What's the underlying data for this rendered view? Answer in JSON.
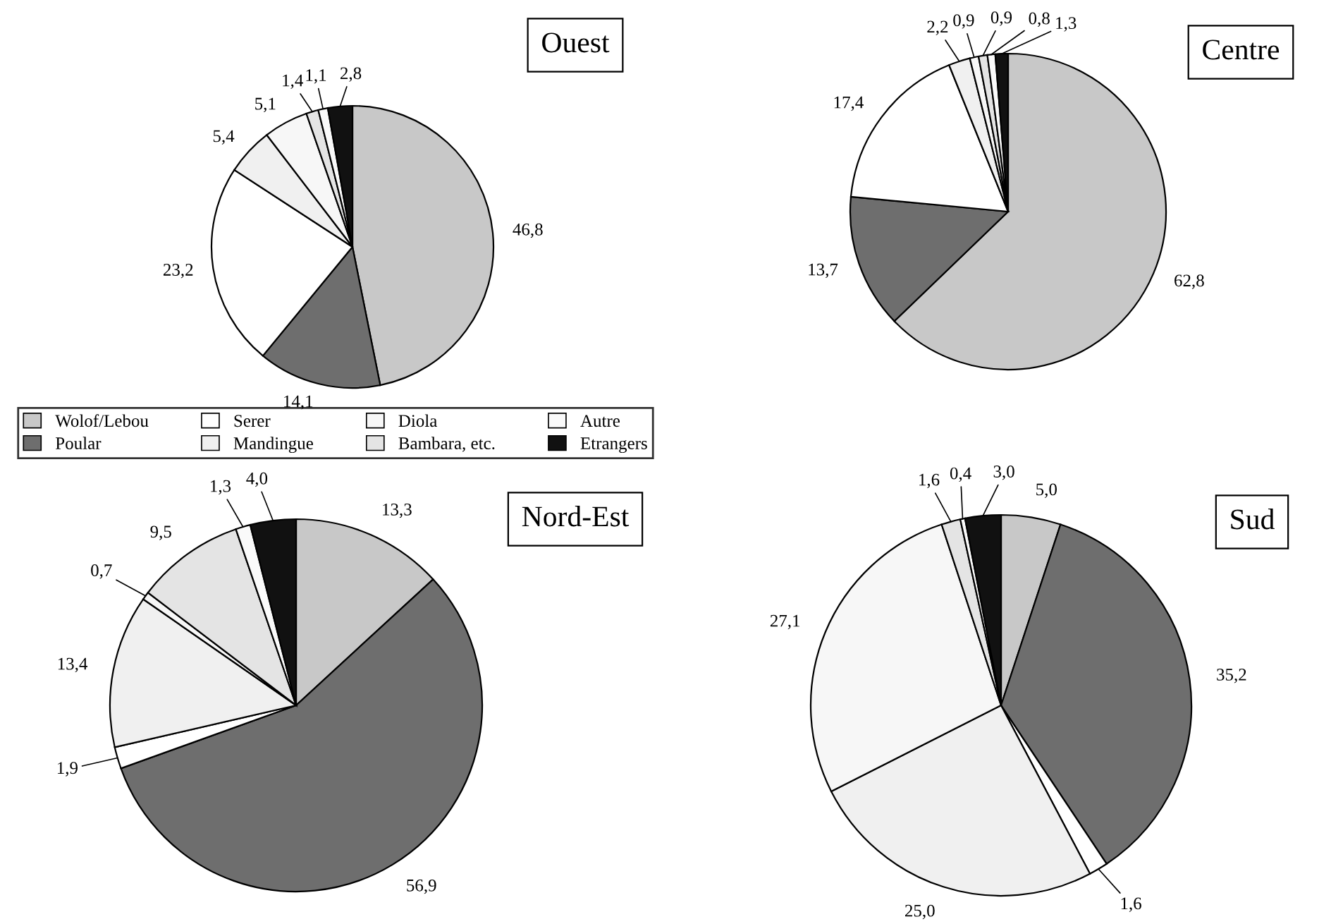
{
  "chart_data": [
    {
      "type": "pie",
      "title": "Ouest",
      "categories": [
        "Wolof/Lebou",
        "Poular",
        "Serer",
        "Mandingue",
        "Diola",
        "Bambara, etc.",
        "Autre",
        "Etrangers"
      ],
      "values": [
        46.8,
        14.1,
        23.2,
        5.4,
        5.1,
        1.4,
        1.1,
        2.8
      ],
      "value_labels": [
        "46,8",
        "14,1",
        "23,2",
        "5,4",
        "5,1",
        "1,4",
        "1,1",
        "2,8"
      ],
      "colors": [
        "#c8c8c8",
        "#6e6e6e",
        "#ffffff",
        "#f0f0f0",
        "#f7f7f7",
        "#e4e4e4",
        "#fafafa",
        "#111111"
      ],
      "legend": "bottom"
    },
    {
      "type": "pie",
      "title": "Centre",
      "values": [
        62.8,
        13.7,
        17.4,
        2.2,
        0.9,
        0.9,
        0.8,
        1.3
      ],
      "value_labels": [
        "62,8",
        "13,7",
        "17,4",
        "2,2",
        "0,9",
        "0,9",
        "0,8",
        "1,3"
      ],
      "colors": [
        "#c8c8c8",
        "#6e6e6e",
        "#ffffff",
        "#f0f0f0",
        "#f7f7f7",
        "#e4e4e4",
        "#fafafa",
        "#111111"
      ]
    },
    {
      "type": "pie",
      "title": "Nord-Est",
      "values": [
        13.3,
        56.9,
        1.9,
        13.4,
        0.7,
        9.5,
        1.3,
        4.0
      ],
      "value_labels": [
        "13,3",
        "56,9",
        "1,9",
        "13,4",
        "0,7",
        "9,5",
        "1,3",
        "4,0"
      ],
      "colors": [
        "#c8c8c8",
        "#6e6e6e",
        "#ffffff",
        "#f0f0f0",
        "#f7f7f7",
        "#e4e4e4",
        "#fafafa",
        "#111111"
      ]
    },
    {
      "type": "pie",
      "title": "Sud",
      "values": [
        5.0,
        35.2,
        1.6,
        25.0,
        27.1,
        1.6,
        0.4,
        3.0
      ],
      "value_labels": [
        "5,0",
        "35,2",
        "1,6",
        "25,0",
        "27,1",
        "1,6",
        "0,4",
        "3,0"
      ],
      "colors": [
        "#c8c8c8",
        "#6e6e6e",
        "#ffffff",
        "#f0f0f0",
        "#f7f7f7",
        "#e4e4e4",
        "#fafafa",
        "#111111"
      ]
    }
  ]
}
